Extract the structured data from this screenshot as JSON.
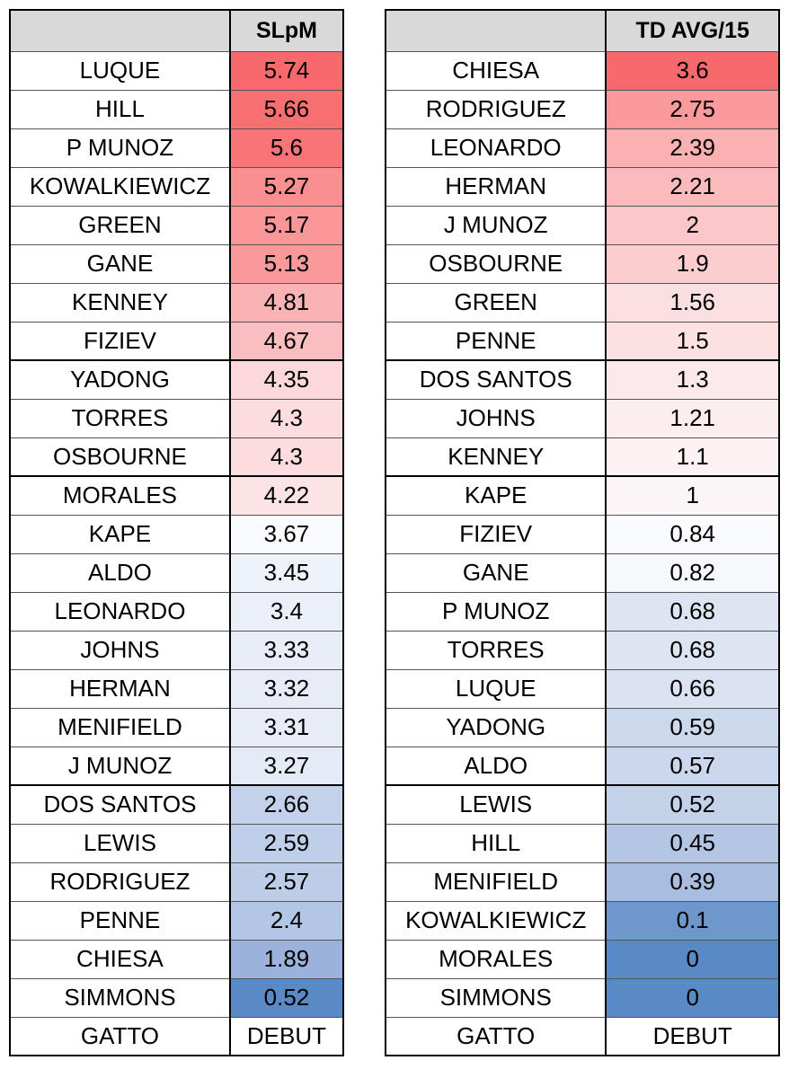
{
  "left": {
    "header_name": "",
    "header_value": "SLpM",
    "rows": [
      {
        "name": "LUQUE",
        "value": "5.74",
        "color": "#f8696b"
      },
      {
        "name": "HILL",
        "value": "5.66",
        "color": "#f86f71"
      },
      {
        "name": "P MUNOZ",
        "value": "5.6",
        "color": "#f87476"
      },
      {
        "name": "KOWALKIEWICZ",
        "value": "5.27",
        "color": "#f98f91"
      },
      {
        "name": "GREEN",
        "value": "5.17",
        "color": "#f99698"
      },
      {
        "name": "GANE",
        "value": "5.13",
        "color": "#f9999b"
      },
      {
        "name": "KENNEY",
        "value": "4.81",
        "color": "#fab3b5"
      },
      {
        "name": "FIZIEV",
        "value": "4.67",
        "color": "#fbbec0"
      },
      {
        "name": "YADONG",
        "value": "4.35",
        "color": "#fcd8da"
      },
      {
        "name": "TORRES",
        "value": "4.3",
        "color": "#fcdcde"
      },
      {
        "name": "OSBOURNE",
        "value": "4.3",
        "color": "#fcdcde"
      },
      {
        "name": "MORALES",
        "value": "4.22",
        "color": "#fce3e5"
      },
      {
        "name": "KAPE",
        "value": "3.67",
        "color": "#fafbfe"
      },
      {
        "name": "ALDO",
        "value": "3.45",
        "color": "#eef2f9"
      },
      {
        "name": "LEONARDO",
        "value": "3.4",
        "color": "#ebeff8"
      },
      {
        "name": "JOHNS",
        "value": "3.33",
        "color": "#e8edf7"
      },
      {
        "name": "HERMAN",
        "value": "3.32",
        "color": "#e7ecf7"
      },
      {
        "name": "MENIFIELD",
        "value": "3.31",
        "color": "#e7ecf6"
      },
      {
        "name": "J MUNOZ",
        "value": "3.27",
        "color": "#e4eaf6"
      },
      {
        "name": "DOS SANTOS",
        "value": "2.66",
        "color": "#c3d1ea"
      },
      {
        "name": "LEWIS",
        "value": "2.59",
        "color": "#bfcee9"
      },
      {
        "name": "RODRIGUEZ",
        "value": "2.57",
        "color": "#bdcde8"
      },
      {
        "name": "PENNE",
        "value": "2.4",
        "color": "#b4c6e5"
      },
      {
        "name": "CHIESA",
        "value": "1.89",
        "color": "#9bb3dc"
      },
      {
        "name": "SIMMONS",
        "value": "0.52",
        "color": "#5a8ac6"
      },
      {
        "name": "GATTO",
        "value": "DEBUT",
        "color": "#ffffff"
      }
    ]
  },
  "right": {
    "header_name": "",
    "header_value": "TD AVG/15",
    "rows": [
      {
        "name": "CHIESA",
        "value": "3.6",
        "color": "#f8696b"
      },
      {
        "name": "RODRIGUEZ",
        "value": "2.75",
        "color": "#fa9a9c"
      },
      {
        "name": "LEONARDO",
        "value": "2.39",
        "color": "#fbb0b2"
      },
      {
        "name": "HERMAN",
        "value": "2.21",
        "color": "#fbbbbd"
      },
      {
        "name": "J MUNOZ",
        "value": "2",
        "color": "#fcc7c9"
      },
      {
        "name": "OSBOURNE",
        "value": "1.9",
        "color": "#fccdcf"
      },
      {
        "name": "GREEN",
        "value": "1.56",
        "color": "#fcdfe1"
      },
      {
        "name": "PENNE",
        "value": "1.5",
        "color": "#fce1e3"
      },
      {
        "name": "DOS SANTOS",
        "value": "1.3",
        "color": "#fce9eb"
      },
      {
        "name": "JOHNS",
        "value": "1.21",
        "color": "#fcedef"
      },
      {
        "name": "KENNEY",
        "value": "1.1",
        "color": "#fcf1f3"
      },
      {
        "name": "KAPE",
        "value": "1",
        "color": "#fcf5f7"
      },
      {
        "name": "FIZIEV",
        "value": "0.84",
        "color": "#fafbfe"
      },
      {
        "name": "GANE",
        "value": "0.82",
        "color": "#f6f8fc"
      },
      {
        "name": "P MUNOZ",
        "value": "0.68",
        "color": "#dde5f3"
      },
      {
        "name": "TORRES",
        "value": "0.68",
        "color": "#dde5f3"
      },
      {
        "name": "LUQUE",
        "value": "0.66",
        "color": "#dbe3f2"
      },
      {
        "name": "YADONG",
        "value": "0.59",
        "color": "#ccd9ed"
      },
      {
        "name": "ALDO",
        "value": "0.57",
        "color": "#cad7ec"
      },
      {
        "name": "LEWIS",
        "value": "0.52",
        "color": "#c3d1e9"
      },
      {
        "name": "HILL",
        "value": "0.45",
        "color": "#b3c5e3"
      },
      {
        "name": "MENIFIELD",
        "value": "0.39",
        "color": "#a8bde0"
      },
      {
        "name": "KOWALKIEWICZ",
        "value": "0.1",
        "color": "#6e97cc"
      },
      {
        "name": "MORALES",
        "value": "0",
        "color": "#5a8ac6"
      },
      {
        "name": "SIMMONS",
        "value": "0",
        "color": "#5a8ac6"
      },
      {
        "name": "GATTO",
        "value": "DEBUT",
        "color": "#ffffff"
      }
    ]
  }
}
